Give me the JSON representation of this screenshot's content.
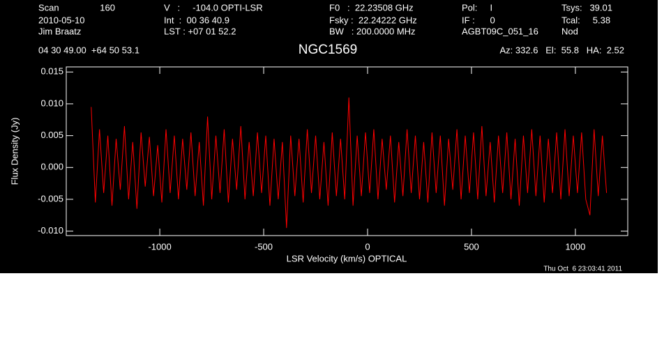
{
  "chart_data": {
    "type": "line",
    "title": "NGC1569",
    "xlabel": "LSR Velocity (km/s) OPTICAL",
    "ylabel": "Flux Density (Jy)",
    "annotations": [
      "Scan",
      "160",
      "2010-05-10",
      "Jim Braatz",
      "V   :     -104.0 OPTI-LSR",
      "Int  :  00 36 40.9",
      "LST : +07 01 52.2",
      "F0   :  22.23508 GHz",
      "Fsky :  22.24222 GHz",
      "BW   : 200.0000 MHz",
      "Pol:     I",
      "IF :      0",
      "AGBT09C_051_16",
      "Tsys:   39.01",
      "Tcal:     5.38",
      "Nod",
      "04 30 49.00  +64 50 53.1",
      "Az: 332.6   El:  55.8   HA:  2.52",
      "Thu Oct  6 23:03:41 2011"
    ],
    "xlim": [
      -1450,
      1252
    ],
    "ylim": [
      -0.0107,
      0.0158
    ],
    "xticks": [
      -1000,
      -500,
      0,
      500,
      1000
    ],
    "yticks": [
      0.015,
      {
        "value": 0.01,
        "label": "0.010"
      },
      0.005,
      {
        "value": 0,
        "label": "0.000"
      },
      -0.005,
      {
        "value": -0.01,
        "label": "-0.010"
      }
    ],
    "series": [
      {
        "name": "NGC1569",
        "color": "#ff0000",
        "x": [
          -1330,
          -1310,
          -1290,
          -1270,
          -1250,
          -1230,
          -1210,
          -1190,
          -1170,
          -1150,
          -1130,
          -1110,
          -1090,
          -1070,
          -1050,
          -1030,
          -1010,
          -990,
          -970,
          -950,
          -930,
          -910,
          -890,
          -870,
          -850,
          -830,
          -810,
          -790,
          -770,
          -750,
          -730,
          -710,
          -690,
          -670,
          -650,
          -630,
          -610,
          -590,
          -570,
          -550,
          -530,
          -510,
          -490,
          -470,
          -450,
          -430,
          -410,
          -390,
          -370,
          -350,
          -330,
          -310,
          -290,
          -270,
          -250,
          -230,
          -210,
          -190,
          -170,
          -150,
          -130,
          -110,
          -90,
          -70,
          -50,
          -30,
          -10,
          10,
          30,
          50,
          70,
          90,
          110,
          130,
          150,
          170,
          190,
          210,
          230,
          250,
          270,
          290,
          310,
          330,
          350,
          370,
          390,
          410,
          430,
          450,
          470,
          490,
          510,
          530,
          550,
          570,
          590,
          610,
          630,
          650,
          670,
          690,
          710,
          730,
          750,
          770,
          790,
          810,
          830,
          850,
          870,
          890,
          910,
          930,
          950,
          970,
          990,
          1010,
          1030,
          1050,
          1070,
          1090,
          1110,
          1130,
          1150
        ],
        "values": [
          0.0095,
          -0.0055,
          0.006,
          -0.004,
          0.005,
          -0.006,
          0.0045,
          -0.0035,
          0.0065,
          -0.005,
          0.004,
          -0.0065,
          0.0055,
          -0.003,
          0.0048,
          -0.0045,
          0.0035,
          -0.0055,
          0.006,
          -0.004,
          0.005,
          -0.005,
          0.0045,
          -0.0035,
          0.0055,
          -0.0045,
          0.004,
          -0.006,
          0.008,
          -0.005,
          0.005,
          -0.004,
          0.006,
          -0.0055,
          0.0045,
          -0.0035,
          0.0065,
          -0.005,
          0.004,
          -0.0045,
          0.0055,
          -0.004,
          0.005,
          -0.006,
          0.0045,
          -0.005,
          0.004,
          -0.0095,
          0.005,
          -0.0045,
          0.0045,
          -0.0055,
          0.006,
          -0.004,
          0.005,
          -0.005,
          0.004,
          -0.006,
          0.0055,
          -0.0045,
          0.0045,
          -0.005,
          0.011,
          -0.006,
          0.005,
          -0.0045,
          0.0055,
          -0.004,
          0.006,
          -0.005,
          0.0045,
          -0.0035,
          0.005,
          -0.0055,
          0.004,
          -0.0045,
          0.006,
          -0.004,
          0.005,
          -0.005,
          0.004,
          -0.0055,
          0.0055,
          -0.004,
          0.005,
          -0.006,
          0.0045,
          -0.0035,
          0.006,
          -0.005,
          0.005,
          -0.004,
          0.0055,
          -0.005,
          0.0065,
          -0.0045,
          0.004,
          -0.0055,
          0.005,
          -0.004,
          0.0055,
          -0.005,
          0.0045,
          -0.006,
          0.005,
          -0.004,
          0.006,
          -0.0045,
          0.005,
          -0.0055,
          0.0045,
          -0.004,
          0.0055,
          -0.005,
          0.006,
          -0.0045,
          0.005,
          -0.004,
          0.0055,
          -0.005,
          -0.0075,
          0.006,
          -0.0045,
          0.005,
          -0.004
        ]
      }
    ]
  }
}
